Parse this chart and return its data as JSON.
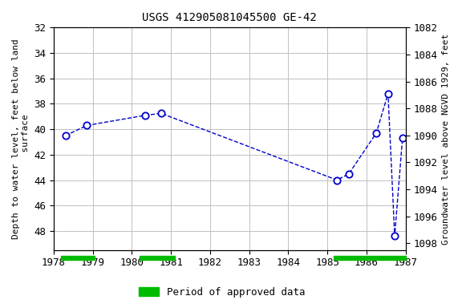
{
  "title": "USGS 412905081045500 GE-42",
  "ylabel_left": "Depth to water level, feet below land\n  surface",
  "ylabel_right": "Groundwater level above NGVD 1929, feet",
  "xlim": [
    1978,
    1987
  ],
  "ylim_left": [
    32,
    49.5
  ],
  "ylim_right": [
    1082,
    1098.5
  ],
  "yticks_left": [
    32,
    34,
    36,
    38,
    40,
    42,
    44,
    46,
    48
  ],
  "yticks_right": [
    1082,
    1084,
    1086,
    1088,
    1090,
    1092,
    1094,
    1096,
    1098
  ],
  "xticks": [
    1978,
    1979,
    1980,
    1981,
    1982,
    1983,
    1984,
    1985,
    1986,
    1987
  ],
  "data_x": [
    1978.3,
    1978.85,
    1980.35,
    1980.75,
    1985.25,
    1985.55,
    1986.25,
    1986.55,
    1986.72,
    1986.92
  ],
  "data_y": [
    40.5,
    39.7,
    38.9,
    38.75,
    44.0,
    43.5,
    40.3,
    37.2,
    48.4,
    40.7
  ],
  "line_color": "#0000cc",
  "marker_facecolor": "white",
  "marker_edgecolor": "#0000cc",
  "approved_bars": [
    {
      "x_start": 1978.18,
      "x_end": 1979.05,
      "color": "#00bb00"
    },
    {
      "x_start": 1980.2,
      "x_end": 1981.1,
      "color": "#00bb00"
    },
    {
      "x_start": 1985.15,
      "x_end": 1987.0,
      "color": "#00bb00"
    }
  ],
  "legend_label": "Period of approved data",
  "legend_color": "#00bb00",
  "background_color": "#ffffff",
  "grid_color": "#c0c0c0",
  "font_family": "monospace",
  "title_fontsize": 10,
  "tick_fontsize": 9,
  "label_fontsize": 8
}
